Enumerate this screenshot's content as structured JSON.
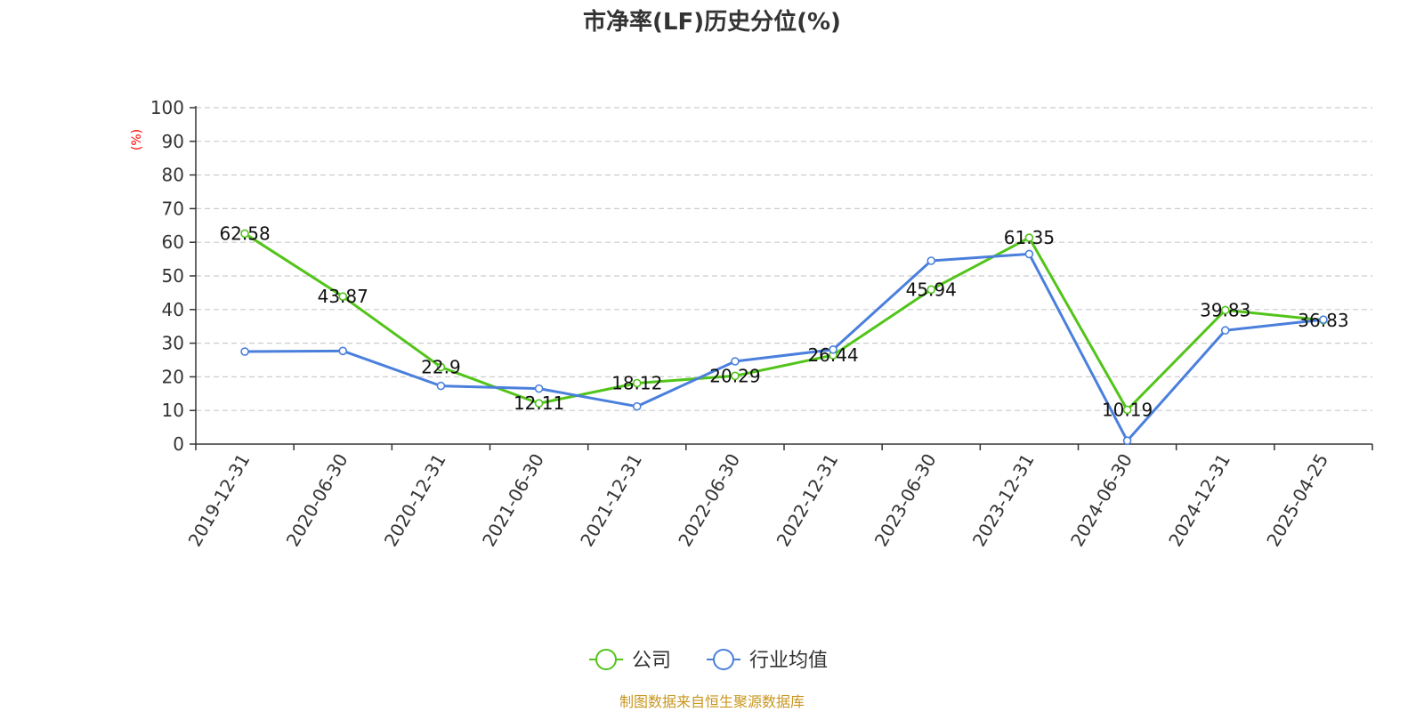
{
  "chart_data": {
    "type": "line",
    "title": "市净率(LF)历史分位(%)",
    "ylabel": "(%)",
    "ylim": [
      0,
      100
    ],
    "yticks": [
      0,
      10,
      20,
      30,
      40,
      50,
      60,
      70,
      80,
      90,
      100
    ],
    "grid": true,
    "legend_position": "bottom",
    "categories": [
      "2019-12-31",
      "2020-06-30",
      "2020-12-31",
      "2021-06-30",
      "2021-12-31",
      "2022-06-30",
      "2022-12-31",
      "2023-06-30",
      "2023-12-31",
      "2024-06-30",
      "2024-12-31",
      "2025-04-25"
    ],
    "series": [
      {
        "name": "公司",
        "color": "#52c41a",
        "values": [
          62.58,
          43.87,
          22.9,
          12.11,
          18.12,
          20.29,
          26.44,
          45.94,
          61.35,
          10.19,
          39.83,
          36.83
        ],
        "labels": [
          "62.58",
          "43.87",
          "22.9",
          "12.11",
          "18.12",
          "20.29",
          "26.44",
          "45.94",
          "61.35",
          "10.19",
          "39.83",
          "36.83"
        ]
      },
      {
        "name": "行业均值",
        "color": "#4a7fdc",
        "values": [
          27.5,
          27.7,
          17.3,
          16.5,
          11.2,
          24.6,
          28.1,
          54.5,
          56.5,
          1.0,
          33.8,
          37.0
        ]
      }
    ],
    "source": "制图数据来自恒生聚源数据库",
    "colors": {
      "ylabel": "#ff0000",
      "source": "#c8961e",
      "grid": "#cccccc",
      "axis": "#333333"
    }
  }
}
